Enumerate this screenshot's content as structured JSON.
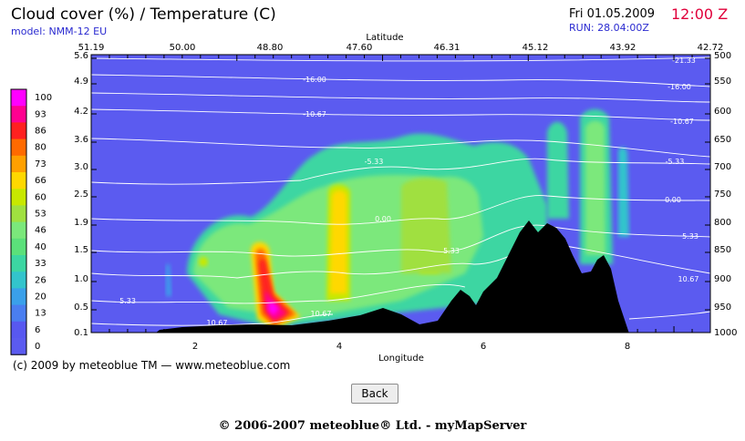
{
  "header": {
    "title": "Cloud cover (%) / Temperature (C)",
    "model": "model: NMM-12 EU",
    "date": "Fri 01.05.2009",
    "time": "12:00 Z",
    "run": "RUN: 28.04:00Z"
  },
  "footer": {
    "copyright": "(c) 2009 by meteoblue TM — www.meteoblue.com",
    "company": "© 2006-2007 meteoblue® Ltd. - myMapServer",
    "back_label": "Back"
  },
  "colors": {
    "background": "#5b5bf0",
    "terrain": "#000000",
    "isotherm": "#ffffff"
  },
  "colorbar": {
    "levels": [
      "100",
      "93",
      "86",
      "80",
      "73",
      "66",
      "60",
      "53",
      "46",
      "40",
      "33",
      "26",
      "20",
      "13",
      "6",
      "0"
    ],
    "colors": [
      "#ff00ff",
      "#ff0090",
      "#ff2020",
      "#ff6a00",
      "#ffa000",
      "#ffd800",
      "#c8e800",
      "#a0e040",
      "#7be87b",
      "#5be07a",
      "#3cd6a2",
      "#33c4cc",
      "#3aa0ea",
      "#4a7ef0",
      "#5858f0",
      "#5b5bf0"
    ]
  },
  "chart_data": {
    "type": "heatmap",
    "title": "Cloud cover (%) / Temperature (C)",
    "xlabel": "Longitude",
    "x2label": "Latitude",
    "left_ticks": [
      "5.6",
      "4.9",
      "4.2",
      "3.6",
      "3.0",
      "2.5",
      "1.9",
      "1.5",
      "1.0",
      "0.5",
      "0.1"
    ],
    "right_ticks": [
      "500",
      "550",
      "600",
      "650",
      "700",
      "750",
      "800",
      "850",
      "900",
      "950",
      "1000"
    ],
    "x_ticks": [
      "2",
      "4",
      "6",
      "8"
    ],
    "lat_ticks": [
      "51.19",
      "50.00",
      "48.80",
      "47.60",
      "46.31",
      "45.12",
      "43.92",
      "42.72"
    ],
    "isotherm_labels": [
      "-21.33",
      "-16.00",
      "-16.00",
      "-10.67",
      "-10.67",
      "-5.33",
      "-5.33",
      "0.00",
      "0.00",
      "5.33",
      "5.33",
      "5.33",
      "10.67",
      "10.67",
      "10.67"
    ],
    "grid": false,
    "legend": "left"
  }
}
